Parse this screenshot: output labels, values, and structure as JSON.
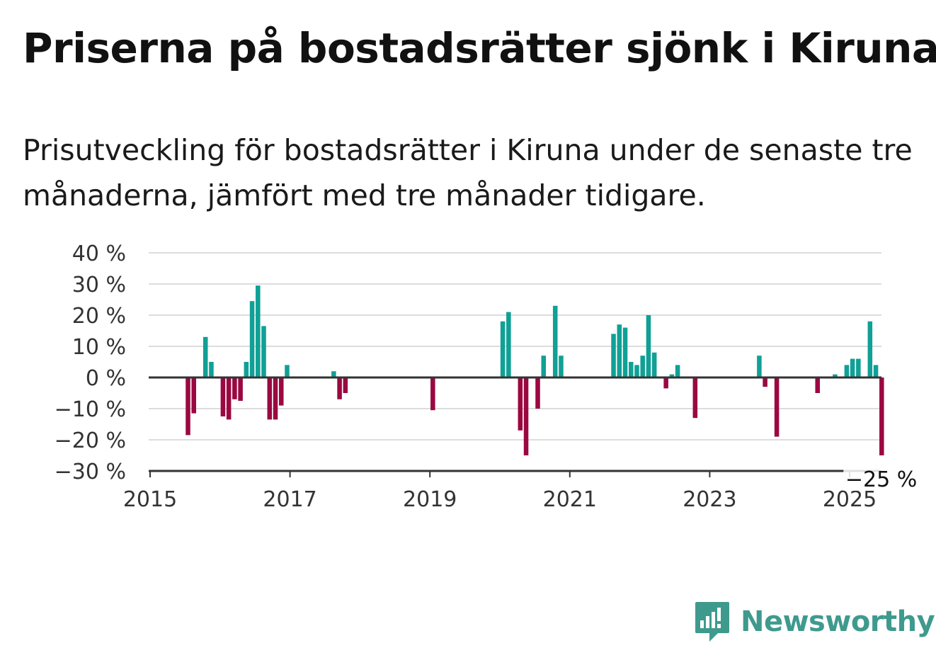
{
  "header": {
    "title": "Priserna på bostadsrätter sjönk i Kiruna",
    "subtitle": "Prisutveckling för bostadsrätter i Kiruna under de senaste tre månaderna, jämfört med tre månader tidigare."
  },
  "brand": {
    "name": "Newsworthy",
    "color": "#3f9a8e"
  },
  "colors": {
    "positive": "#10a096",
    "negative": "#9b0841",
    "grid": "#dddddd",
    "axis": "#333333"
  },
  "chart_data": {
    "type": "bar",
    "title": "Priserna på bostadsrätter sjönk i Kiruna",
    "ylim": [
      -30,
      40
    ],
    "yticks": [
      40,
      30,
      20,
      10,
      0,
      -10,
      -20,
      -30
    ],
    "ytick_labels": [
      "40 %",
      "30 %",
      "20 %",
      "10 %",
      "0 %",
      "−10 %",
      "−20 %",
      "−30 %"
    ],
    "xlim": [
      2015.0,
      2025.5
    ],
    "xticks": [
      2015,
      2017,
      2019,
      2021,
      2023,
      2025
    ],
    "xtick_labels": [
      "2015",
      "2017",
      "2019",
      "2021",
      "2023",
      "2025"
    ],
    "grid": true,
    "annotation": {
      "label": "−25 %",
      "x": "2025-06",
      "y": -25
    },
    "x": [
      "2015-07",
      "2015-08",
      "2015-10",
      "2015-11",
      "2016-01",
      "2016-02",
      "2016-03",
      "2016-04",
      "2016-05",
      "2016-06",
      "2016-07",
      "2016-08",
      "2016-09",
      "2016-10",
      "2016-11",
      "2016-12",
      "2017-08",
      "2017-09",
      "2017-10",
      "2019-01",
      "2020-01",
      "2020-02",
      "2020-04",
      "2020-05",
      "2020-07",
      "2020-08",
      "2020-10",
      "2020-11",
      "2021-08",
      "2021-09",
      "2021-10",
      "2021-11",
      "2021-12",
      "2022-01",
      "2022-02",
      "2022-03",
      "2022-05",
      "2022-06",
      "2022-07",
      "2022-10",
      "2023-09",
      "2023-10",
      "2023-12",
      "2024-07",
      "2024-10",
      "2024-12",
      "2025-01",
      "2025-02",
      "2025-04",
      "2025-05",
      "2025-06"
    ],
    "values": [
      -18.5,
      -11.5,
      13,
      5,
      -12.5,
      -13.5,
      -7,
      -7.5,
      5,
      24.5,
      29.5,
      16.5,
      -13.5,
      -13.5,
      -9,
      4,
      2,
      -7,
      -5,
      -10.5,
      18,
      21,
      -17,
      -25,
      -10,
      7,
      23,
      7,
      14,
      17,
      16,
      5,
      4,
      7,
      20,
      8,
      -3.5,
      1,
      4,
      -13,
      7,
      -3,
      -19,
      -5,
      1,
      4,
      6,
      6,
      18,
      4,
      -25
    ]
  }
}
